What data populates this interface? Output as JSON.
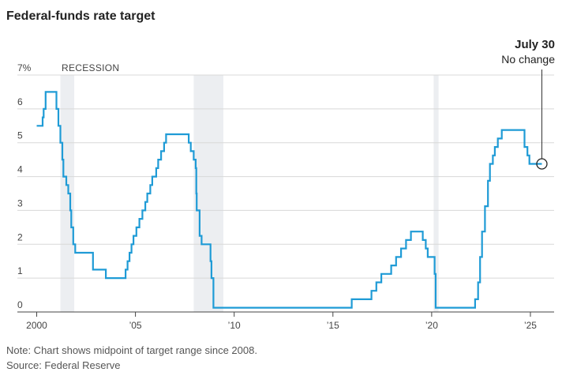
{
  "chart_data": {
    "type": "line",
    "title": "Federal-funds rate target",
    "ylim": [
      0,
      7
    ],
    "yticks": [
      {
        "value": 7,
        "label": "7%"
      },
      {
        "value": 6,
        "label": "6"
      },
      {
        "value": 5,
        "label": "5"
      },
      {
        "value": 4,
        "label": "4"
      },
      {
        "value": 3,
        "label": "3"
      },
      {
        "value": 2,
        "label": "2"
      },
      {
        "value": 1,
        "label": "1"
      },
      {
        "value": 0,
        "label": "0"
      }
    ],
    "xlim": [
      1999.9,
      2026.2
    ],
    "xticks": [
      {
        "value": 2000,
        "label": "2000"
      },
      {
        "value": 2005,
        "label": "’05"
      },
      {
        "value": 2010,
        "label": "’10"
      },
      {
        "value": 2015,
        "label": "’15"
      },
      {
        "value": 2020,
        "label": "’20"
      },
      {
        "value": 2025,
        "label": "’25"
      }
    ],
    "recessions": [
      {
        "start": 2001.2,
        "end": 2001.9
      },
      {
        "start": 2007.95,
        "end": 2009.45
      },
      {
        "start": 2020.1,
        "end": 2020.35
      }
    ],
    "recession_label": "RECESSION",
    "series": [
      {
        "color": "#1f9bd6",
        "points": [
          [
            2000.0,
            5.5
          ],
          [
            2000.3,
            5.75
          ],
          [
            2000.35,
            6.0
          ],
          [
            2000.45,
            6.5
          ],
          [
            2001.0,
            6.0
          ],
          [
            2001.1,
            5.5
          ],
          [
            2001.2,
            5.0
          ],
          [
            2001.3,
            4.5
          ],
          [
            2001.35,
            4.0
          ],
          [
            2001.5,
            3.75
          ],
          [
            2001.6,
            3.5
          ],
          [
            2001.7,
            3.0
          ],
          [
            2001.75,
            2.5
          ],
          [
            2001.85,
            2.0
          ],
          [
            2001.95,
            1.75
          ],
          [
            2002.85,
            1.25
          ],
          [
            2003.5,
            1.0
          ],
          [
            2004.5,
            1.25
          ],
          [
            2004.6,
            1.5
          ],
          [
            2004.7,
            1.75
          ],
          [
            2004.8,
            2.0
          ],
          [
            2004.9,
            2.25
          ],
          [
            2005.05,
            2.5
          ],
          [
            2005.2,
            2.75
          ],
          [
            2005.35,
            3.0
          ],
          [
            2005.5,
            3.25
          ],
          [
            2005.6,
            3.5
          ],
          [
            2005.75,
            3.75
          ],
          [
            2005.85,
            4.0
          ],
          [
            2006.05,
            4.25
          ],
          [
            2006.15,
            4.5
          ],
          [
            2006.3,
            4.75
          ],
          [
            2006.45,
            5.0
          ],
          [
            2006.55,
            5.25
          ],
          [
            2007.7,
            5.0
          ],
          [
            2007.8,
            4.75
          ],
          [
            2007.95,
            4.5
          ],
          [
            2008.05,
            4.25
          ],
          [
            2008.08,
            3.5
          ],
          [
            2008.1,
            3.0
          ],
          [
            2008.25,
            2.25
          ],
          [
            2008.35,
            2.0
          ],
          [
            2008.8,
            1.5
          ],
          [
            2008.85,
            1.0
          ],
          [
            2008.95,
            0.125
          ],
          [
            2015.95,
            0.375
          ],
          [
            2016.95,
            0.625
          ],
          [
            2017.2,
            0.875
          ],
          [
            2017.45,
            1.125
          ],
          [
            2017.95,
            1.375
          ],
          [
            2018.2,
            1.625
          ],
          [
            2018.45,
            1.875
          ],
          [
            2018.7,
            2.125
          ],
          [
            2018.95,
            2.375
          ],
          [
            2019.55,
            2.125
          ],
          [
            2019.7,
            1.875
          ],
          [
            2019.8,
            1.625
          ],
          [
            2020.15,
            1.125
          ],
          [
            2020.2,
            0.125
          ],
          [
            2022.2,
            0.375
          ],
          [
            2022.35,
            0.875
          ],
          [
            2022.45,
            1.625
          ],
          [
            2022.55,
            2.375
          ],
          [
            2022.7,
            3.125
          ],
          [
            2022.85,
            3.875
          ],
          [
            2022.95,
            4.375
          ],
          [
            2023.1,
            4.625
          ],
          [
            2023.2,
            4.875
          ],
          [
            2023.35,
            5.125
          ],
          [
            2023.55,
            5.375
          ],
          [
            2024.7,
            4.875
          ],
          [
            2024.85,
            4.625
          ],
          [
            2024.95,
            4.375
          ],
          [
            2025.58,
            4.375
          ]
        ]
      }
    ],
    "annotation": {
      "date": "July 30",
      "text": "No change",
      "x": 2025.58,
      "y": 4.375
    },
    "notes": [
      "Note: Chart shows midpoint of target range since 2008.",
      "Source: Federal Reserve"
    ]
  }
}
